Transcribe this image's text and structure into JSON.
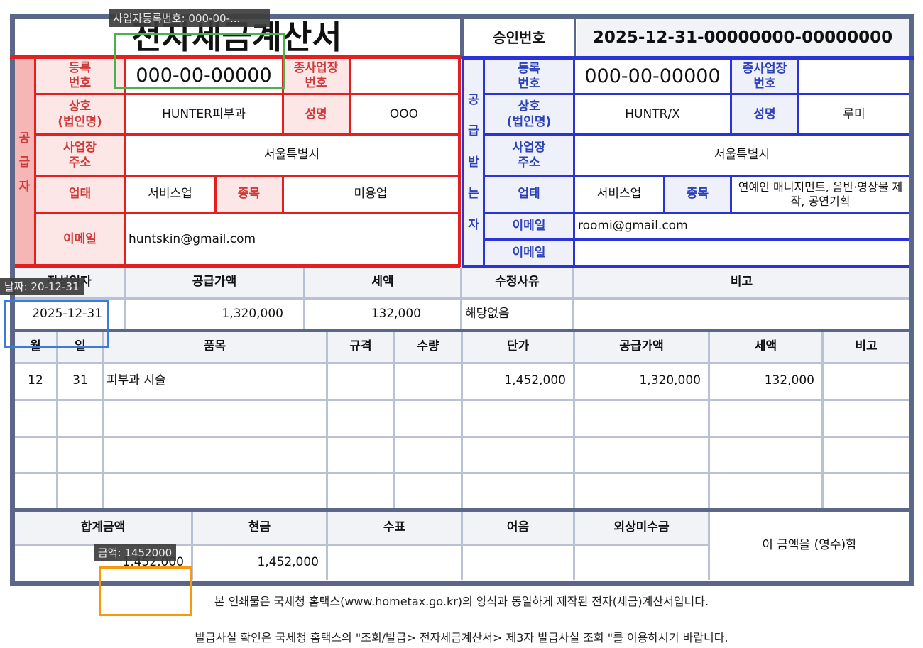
{
  "title": "전자세금계산서",
  "approval": {
    "label": "승인번호",
    "value": "2025-12-31-00000000-00000000"
  },
  "supplier": {
    "side_chars": [
      "공",
      "급",
      "자"
    ],
    "reg_label": "등록\n번호",
    "reg_no": "000-00-00000",
    "branch_label": "종사업장\n번호",
    "branch_no": "",
    "name_label": "상호\n(법인명)",
    "name": "HUNTER피부과",
    "rep_label": "성명",
    "rep": "OOO",
    "addr_label": "사업장\n주소",
    "addr": "서울특별시",
    "type_label": "업태",
    "type": "서비스업",
    "item_label": "종목",
    "item": "미용업",
    "email_label": "이메일",
    "email": "huntskin@gmail.com"
  },
  "receiver": {
    "side_chars": [
      "공",
      "급",
      "받",
      "는",
      "자"
    ],
    "reg_label": "등록\n번호",
    "reg_no": "000-00-00000",
    "branch_label": "종사업장\n번호",
    "branch_no": "",
    "name_label": "상호\n(법인명)",
    "name": "HUNTR/X",
    "rep_label": "성명",
    "rep": "루미",
    "addr_label": "사업장\n주소",
    "addr": "서울특별시",
    "type_label": "업태",
    "type": "서비스업",
    "item_label": "종목",
    "item": "연예인 매니지먼트, 음반·영상물 제작, 공연기획",
    "email_label": "이메일",
    "email": "roomi@gmail.com",
    "email2_label": "이메일",
    "email2": ""
  },
  "summary": {
    "headers": [
      "작성일자",
      "공급가액",
      "세액",
      "수정사유",
      "비고"
    ],
    "date": "2025-12-31",
    "supply": "1,320,000",
    "tax": "132,000",
    "reason": "해당없음",
    "note": ""
  },
  "items": {
    "headers": [
      "월",
      "일",
      "품목",
      "규격",
      "수량",
      "단가",
      "공급가액",
      "세액",
      "비고"
    ],
    "rows": [
      [
        "12",
        "31",
        "피부과 시술",
        "",
        "",
        "1,452,000",
        "1,320,000",
        "132,000",
        ""
      ],
      [
        "",
        "",
        "",
        "",
        "",
        "",
        "",
        "",
        ""
      ],
      [
        "",
        "",
        "",
        "",
        "",
        "",
        "",
        "",
        ""
      ],
      [
        "",
        "",
        "",
        "",
        "",
        "",
        "",
        "",
        ""
      ]
    ]
  },
  "totals": {
    "headers": [
      "합계금액",
      "현금",
      "수표",
      "어음",
      "외상미수금"
    ],
    "total": "1,452,000",
    "cash": "1,452,000",
    "check": "",
    "note": "",
    "credit": "",
    "receipt_text": "이 금액을 (영수)함"
  },
  "footer": {
    "line1": "본 인쇄물은 국세청 홈택스(www.hometax.go.kr)의 양식과 동일하게 제작된 전자(세금)계산서입니다.",
    "line2": "발급사실 확인은 국세청 홈택스의 \"조회/발급> 전자세금계산서> 제3자 발급사실 조회 \"를 이용하시기 바랍니다."
  },
  "annotations": {
    "reg_tag": "사업자등록번호: 000-00-...",
    "date_tag": "날짜: 20-12-31",
    "amount_tag": "금액: 1452000",
    "colors": {
      "reg": "#4caf50",
      "date": "#3a7be0",
      "amount": "#f59a0b"
    }
  }
}
